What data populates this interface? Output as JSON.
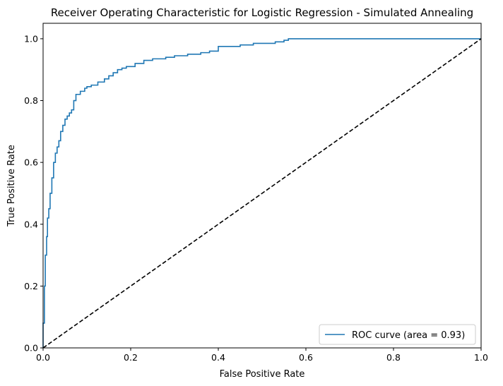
{
  "chart_data": {
    "type": "line",
    "title": "Receiver Operating Characteristic for Logistic Regression - Simulated Annealing",
    "xlabel": "False Positive Rate",
    "ylabel": "True Positive Rate",
    "xlim": [
      0.0,
      1.0
    ],
    "ylim": [
      0.0,
      1.05
    ],
    "xticks": [
      0.0,
      0.2,
      0.4,
      0.6,
      0.8,
      1.0
    ],
    "yticks": [
      0.0,
      0.2,
      0.4,
      0.6,
      0.8,
      1.0
    ],
    "xtick_labels": [
      "0.0",
      "0.2",
      "0.4",
      "0.6",
      "0.8",
      "1.0"
    ],
    "ytick_labels": [
      "0.0",
      "0.2",
      "0.4",
      "0.6",
      "0.8",
      "1.0"
    ],
    "grid": false,
    "legend_position": "lower-right",
    "series": [
      {
        "name": "ROC curve (area = 0.93)",
        "color": "#1f77b4",
        "style": "solid",
        "x": [
          0.0,
          0.0,
          0.003,
          0.003,
          0.005,
          0.005,
          0.008,
          0.008,
          0.01,
          0.01,
          0.013,
          0.013,
          0.016,
          0.016,
          0.02,
          0.02,
          0.024,
          0.024,
          0.028,
          0.028,
          0.032,
          0.032,
          0.036,
          0.036,
          0.04,
          0.04,
          0.045,
          0.045,
          0.05,
          0.05,
          0.055,
          0.055,
          0.06,
          0.06,
          0.065,
          0.065,
          0.07,
          0.07,
          0.075,
          0.075,
          0.085,
          0.085,
          0.095,
          0.095,
          0.1,
          0.1,
          0.11,
          0.11,
          0.125,
          0.125,
          0.14,
          0.14,
          0.15,
          0.15,
          0.16,
          0.16,
          0.17,
          0.17,
          0.18,
          0.18,
          0.19,
          0.19,
          0.21,
          0.21,
          0.23,
          0.23,
          0.25,
          0.25,
          0.28,
          0.28,
          0.3,
          0.3,
          0.33,
          0.33,
          0.36,
          0.36,
          0.38,
          0.38,
          0.4,
          0.4,
          0.45,
          0.45,
          0.48,
          0.48,
          0.53,
          0.53,
          0.55,
          0.55,
          0.56,
          0.56,
          1.0
        ],
        "y": [
          0.0,
          0.08,
          0.08,
          0.2,
          0.2,
          0.3,
          0.3,
          0.36,
          0.36,
          0.42,
          0.42,
          0.45,
          0.45,
          0.5,
          0.5,
          0.55,
          0.55,
          0.6,
          0.6,
          0.63,
          0.63,
          0.65,
          0.65,
          0.67,
          0.67,
          0.7,
          0.7,
          0.72,
          0.72,
          0.74,
          0.74,
          0.75,
          0.75,
          0.76,
          0.76,
          0.77,
          0.77,
          0.8,
          0.8,
          0.82,
          0.82,
          0.83,
          0.83,
          0.84,
          0.84,
          0.845,
          0.845,
          0.85,
          0.85,
          0.86,
          0.86,
          0.87,
          0.87,
          0.88,
          0.88,
          0.89,
          0.89,
          0.9,
          0.9,
          0.905,
          0.905,
          0.91,
          0.91,
          0.92,
          0.92,
          0.93,
          0.93,
          0.935,
          0.935,
          0.94,
          0.94,
          0.945,
          0.945,
          0.95,
          0.95,
          0.955,
          0.955,
          0.96,
          0.96,
          0.975,
          0.975,
          0.98,
          0.98,
          0.985,
          0.985,
          0.99,
          0.99,
          0.995,
          0.995,
          1.0,
          1.0
        ]
      },
      {
        "name": "",
        "color": "#000000",
        "style": "dashed",
        "x": [
          0.0,
          1.0
        ],
        "y": [
          0.0,
          1.0
        ]
      }
    ]
  }
}
